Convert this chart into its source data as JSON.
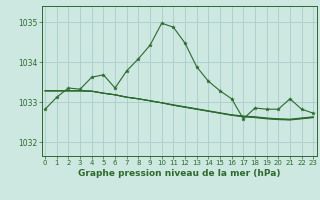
{
  "title": "Graphe pression niveau de la mer (hPa)",
  "background_color": "#cce8e0",
  "grid_color": "#aacccc",
  "line_color": "#2d6a2d",
  "x_ticks": [
    0,
    1,
    2,
    3,
    4,
    5,
    6,
    7,
    8,
    9,
    10,
    11,
    12,
    13,
    14,
    15,
    16,
    17,
    18,
    19,
    20,
    21,
    22,
    23
  ],
  "y_ticks": [
    1032,
    1033,
    1034,
    1035
  ],
  "ylim": [
    1031.65,
    1035.4
  ],
  "xlim": [
    -0.3,
    23.3
  ],
  "series_main": [
    1032.82,
    1033.12,
    1033.35,
    1033.32,
    1033.62,
    1033.68,
    1033.35,
    1033.78,
    1034.08,
    1034.42,
    1034.97,
    1034.87,
    1034.47,
    1033.88,
    1033.52,
    1033.28,
    1033.08,
    1032.58,
    1032.85,
    1032.82,
    1032.82,
    1033.08,
    1032.82,
    1032.72
  ],
  "series_trend": [
    [
      1033.28,
      1033.28,
      1033.28,
      1033.28,
      1033.27,
      1033.22,
      1033.18,
      1033.12,
      1033.08,
      1033.03,
      1032.98,
      1032.93,
      1032.88,
      1032.83,
      1032.78,
      1032.73,
      1032.68,
      1032.65,
      1032.63,
      1032.6,
      1032.58,
      1032.57,
      1032.6,
      1032.63
    ],
    [
      1033.28,
      1033.28,
      1033.28,
      1033.28,
      1033.27,
      1033.22,
      1033.18,
      1033.12,
      1033.08,
      1033.03,
      1032.98,
      1032.92,
      1032.87,
      1032.82,
      1032.77,
      1032.72,
      1032.67,
      1032.64,
      1032.62,
      1032.59,
      1032.57,
      1032.56,
      1032.59,
      1032.62
    ],
    [
      1033.28,
      1033.28,
      1033.28,
      1033.28,
      1033.27,
      1033.22,
      1033.18,
      1033.12,
      1033.08,
      1033.03,
      1032.98,
      1032.92,
      1032.87,
      1032.82,
      1032.77,
      1032.72,
      1032.67,
      1032.63,
      1032.61,
      1032.58,
      1032.56,
      1032.55,
      1032.58,
      1032.61
    ]
  ],
  "xlabel_fontsize": 6.5,
  "tick_fontsize": 5.0
}
